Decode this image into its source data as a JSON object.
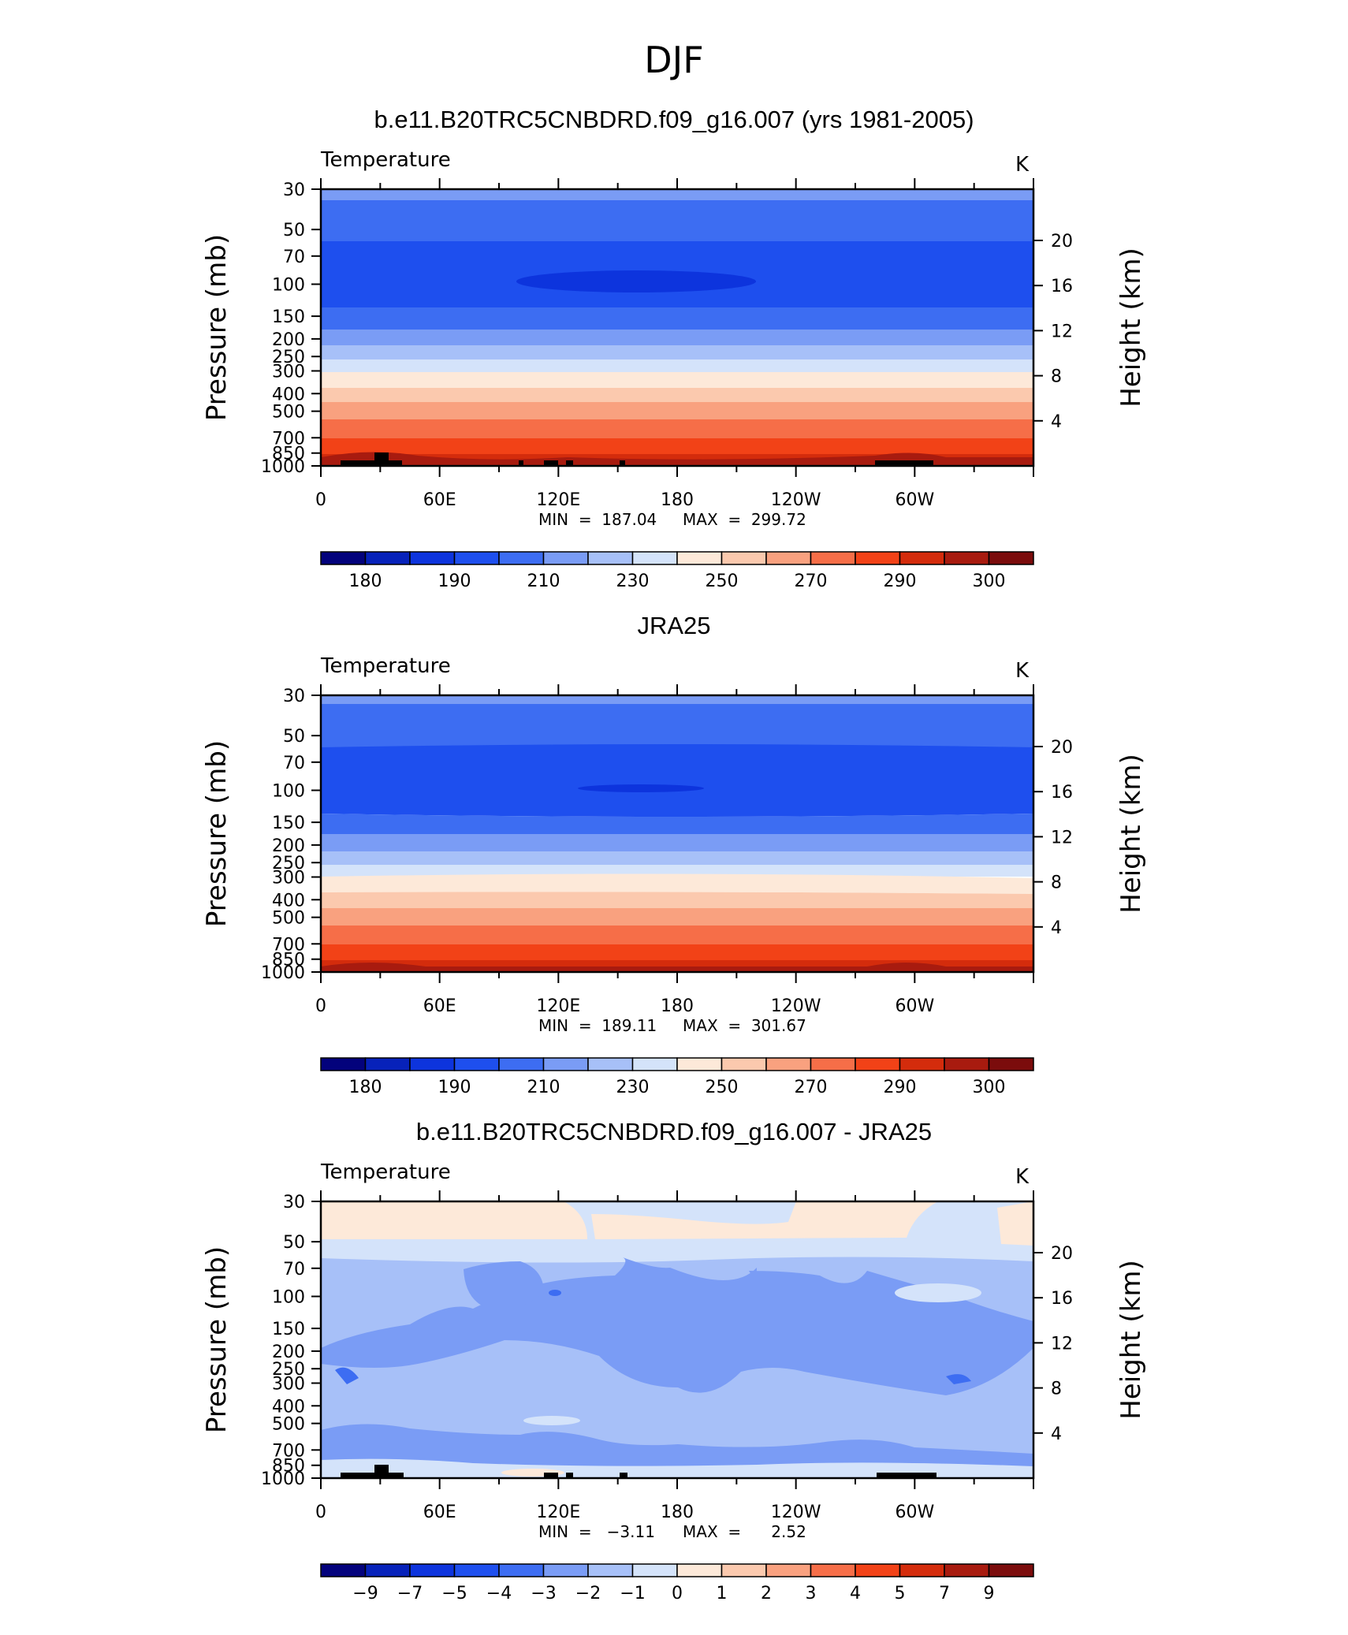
{
  "figure": {
    "title": "DJF"
  },
  "chart_data": [
    {
      "type": "heatmap",
      "title": "b.e11.B20TRC5CNBDRD.f09_g16.007 (yrs 1981-2005)",
      "left_label": "Temperature",
      "units": "K",
      "ylabel": "Pressure  (mb)",
      "ylabel_right": "Height  (km)",
      "x_ticks": [
        "0",
        "60E",
        "120E",
        "180",
        "120W",
        "60W"
      ],
      "y_ticks": [
        "30",
        "50",
        "70",
        "100",
        "150",
        "200",
        "250",
        "300",
        "400",
        "500",
        "700",
        "850",
        "1000"
      ],
      "y_right_ticks": [
        "20",
        "16",
        "12",
        "8",
        "4"
      ],
      "min_label": "MIN  =  187.04",
      "max_label": "MAX  =  299.72",
      "min": 187.04,
      "max": 299.72,
      "colorbar_labels": [
        "180",
        "190",
        "210",
        "230",
        "250",
        "270",
        "290",
        "300"
      ],
      "colors": [
        "#03027c",
        "#0722ba",
        "#0d34dd",
        "#1e4fee",
        "#3d6df2",
        "#7a9cf5",
        "#a7c0f8",
        "#d4e3fa",
        "#fde9d9",
        "#fbc9ae",
        "#f9a17f",
        "#f66e48",
        "#f24217",
        "#d42c0c",
        "#a81b0f",
        "#7b0c0c"
      ]
    },
    {
      "type": "heatmap",
      "title": "JRA25",
      "left_label": "Temperature",
      "units": "K",
      "ylabel": "Pressure  (mb)",
      "ylabel_right": "Height  (km)",
      "x_ticks": [
        "0",
        "60E",
        "120E",
        "180",
        "120W",
        "60W"
      ],
      "y_ticks": [
        "30",
        "50",
        "70",
        "100",
        "150",
        "200",
        "250",
        "300",
        "400",
        "500",
        "700",
        "850",
        "1000"
      ],
      "y_right_ticks": [
        "20",
        "16",
        "12",
        "8",
        "4"
      ],
      "min_label": "MIN  =  189.11",
      "max_label": "MAX  =  301.67",
      "min": 189.11,
      "max": 301.67,
      "colorbar_labels": [
        "180",
        "190",
        "210",
        "230",
        "250",
        "270",
        "290",
        "300"
      ],
      "colors": [
        "#03027c",
        "#0722ba",
        "#0d34dd",
        "#1e4fee",
        "#3d6df2",
        "#7a9cf5",
        "#a7c0f8",
        "#d4e3fa",
        "#fde9d9",
        "#fbc9ae",
        "#f9a17f",
        "#f66e48",
        "#f24217",
        "#d42c0c",
        "#a81b0f",
        "#7b0c0c"
      ]
    },
    {
      "type": "heatmap",
      "title": "b.e11.B20TRC5CNBDRD.f09_g16.007 - JRA25",
      "left_label": "Temperature",
      "units": "K",
      "ylabel": "Pressure  (mb)",
      "ylabel_right": "Height  (km)",
      "x_ticks": [
        "0",
        "60E",
        "120E",
        "180",
        "120W",
        "60W"
      ],
      "y_ticks": [
        "30",
        "50",
        "70",
        "100",
        "150",
        "200",
        "250",
        "300",
        "400",
        "500",
        "700",
        "850",
        "1000"
      ],
      "y_right_ticks": [
        "20",
        "16",
        "12",
        "8",
        "4"
      ],
      "min_label": "MIN  =   −3.11",
      "max_label": "MAX  =      2.52",
      "min": -3.11,
      "max": 2.52,
      "colorbar_labels": [
        "−9",
        "−7",
        "−5",
        "−4",
        "−3",
        "−2",
        "−1",
        "0",
        "1",
        "2",
        "3",
        "4",
        "5",
        "7",
        "9"
      ],
      "colors": [
        "#03027c",
        "#0722ba",
        "#0d34dd",
        "#1e4fee",
        "#3d6df2",
        "#7a9cf5",
        "#a7c0f8",
        "#d4e3fa",
        "#fde9d9",
        "#fbc9ae",
        "#f9a17f",
        "#f66e48",
        "#f24217",
        "#d42c0c",
        "#a81b0f",
        "#7b0c0c"
      ]
    }
  ]
}
